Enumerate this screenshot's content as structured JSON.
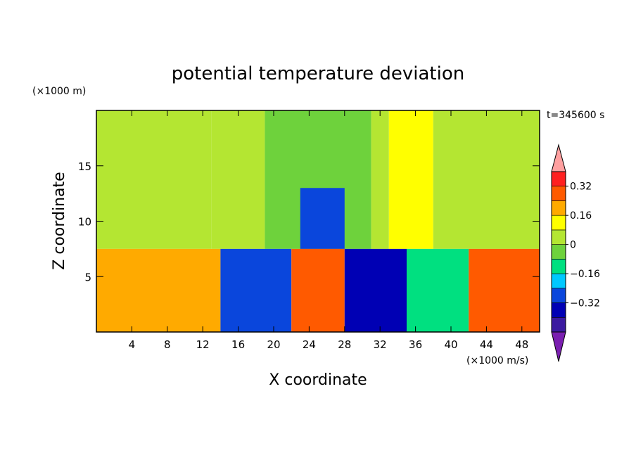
{
  "chart_data": {
    "type": "heatmap",
    "title": "potential temperature deviation",
    "xlabel": "X coordinate",
    "ylabel": "Z coordinate",
    "x_unit_label": "(×1000 m/s)",
    "y_unit_label": "(×1000 m)",
    "time_label": "t=345600 s",
    "xlim": [
      0,
      50
    ],
    "ylim": [
      0,
      20
    ],
    "x_ticks": [
      4,
      8,
      12,
      16,
      20,
      24,
      28,
      32,
      36,
      40,
      44,
      48
    ],
    "y_ticks": [
      5,
      10,
      15
    ],
    "colorbar": {
      "levels": [
        -0.48,
        -0.4,
        -0.32,
        -0.24,
        -0.16,
        -0.08,
        0,
        0.08,
        0.16,
        0.24,
        0.32,
        0.4
      ],
      "tick_labels": [
        "0.32",
        "0.16",
        "0",
        "−0.16",
        "−0.32"
      ],
      "tick_values": [
        0.32,
        0.16,
        0,
        -0.16,
        -0.32
      ],
      "colors": [
        "#7a1fb0",
        "#3b1aa0",
        "#0000b4",
        "#0a46dc",
        "#00c8ff",
        "#00e080",
        "#6ed23c",
        "#b4e632",
        "#ffff00",
        "#ffaa00",
        "#ff5a00",
        "#ff2020",
        "#ffa0a0"
      ]
    },
    "field_regions": [
      {
        "x": [
          0,
          5
        ],
        "z": [
          7.5,
          20
        ],
        "value": 0.01
      },
      {
        "x": [
          5,
          13
        ],
        "z": [
          7.5,
          20
        ],
        "value": 0.06
      },
      {
        "x": [
          13,
          19
        ],
        "z": [
          7.5,
          20
        ],
        "value": 0.01
      },
      {
        "x": [
          19,
          31
        ],
        "z": [
          7.5,
          20
        ],
        "value": -0.06
      },
      {
        "x": [
          23,
          28
        ],
        "z": [
          7.5,
          13
        ],
        "value": -0.3
      },
      {
        "x": [
          31,
          33
        ],
        "z": [
          7.5,
          20
        ],
        "value": 0.06
      },
      {
        "x": [
          33,
          38
        ],
        "z": [
          7.5,
          20
        ],
        "value": 0.14
      },
      {
        "x": [
          38,
          40
        ],
        "z": [
          7.5,
          20
        ],
        "value": 0.06
      },
      {
        "x": [
          40,
          50
        ],
        "z": [
          7.5,
          20
        ],
        "value": 0.01
      },
      {
        "x": [
          0,
          14
        ],
        "z": [
          0,
          7.5
        ],
        "value": 0.2
      },
      {
        "x": [
          14,
          22
        ],
        "z": [
          0,
          7.5
        ],
        "value": -0.28
      },
      {
        "x": [
          22,
          28
        ],
        "z": [
          0,
          7.5
        ],
        "value": 0.3
      },
      {
        "x": [
          28,
          35
        ],
        "z": [
          0,
          7.5
        ],
        "value": -0.36
      },
      {
        "x": [
          35,
          42
        ],
        "z": [
          0,
          7.5
        ],
        "value": -0.1
      },
      {
        "x": [
          42,
          50
        ],
        "z": [
          0,
          7.5
        ],
        "value": 0.26
      }
    ]
  }
}
